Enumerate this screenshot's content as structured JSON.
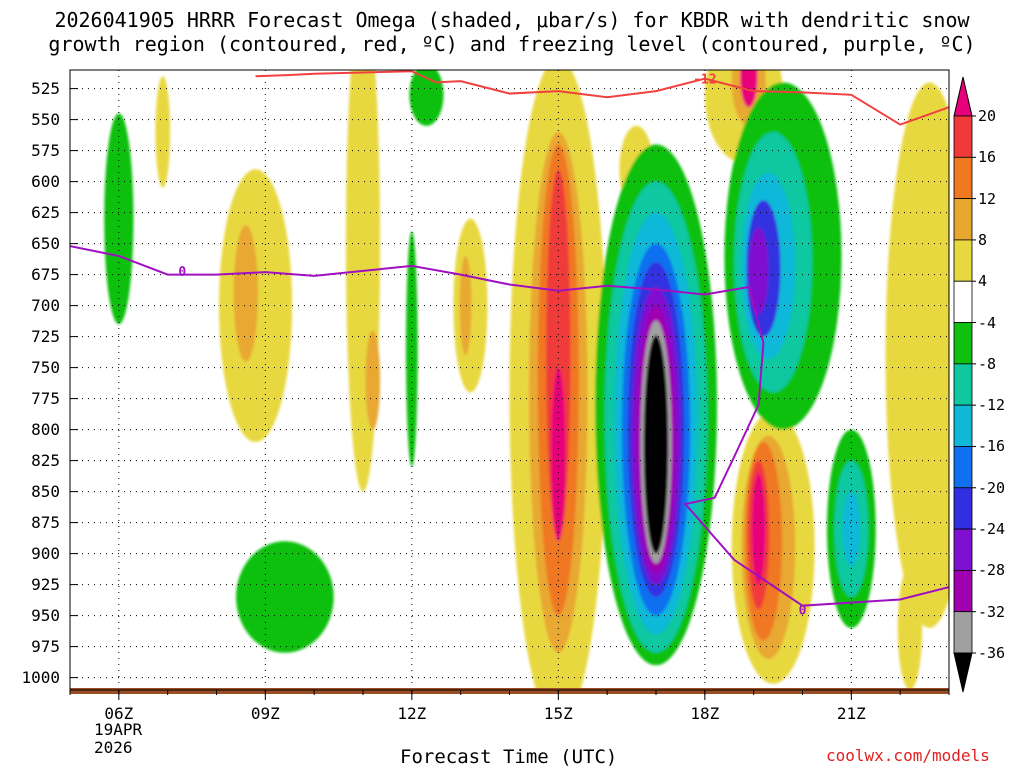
{
  "chart_data": {
    "type": "heatmap",
    "title_line1": "2026041905 HRRR Forecast Omega (shaded, μbar/s) for KBDR with dendritic snow",
    "title_line2": "growth region (contoured, red, ºC) and freezing level (contoured, purple, ºC)",
    "xlabel": "Forecast Time (UTC)",
    "x_ticks": [
      "06Z",
      "09Z",
      "12Z",
      "15Z",
      "18Z",
      "21Z"
    ],
    "x_tick_hours": [
      6,
      9,
      12,
      15,
      18,
      21
    ],
    "date_label": [
      "19APR",
      "2026"
    ],
    "xlim_hours": [
      5,
      23
    ],
    "y_ticks": [
      525,
      550,
      575,
      600,
      625,
      650,
      675,
      700,
      725,
      750,
      775,
      800,
      825,
      850,
      875,
      900,
      925,
      950,
      975,
      1000
    ],
    "ylim_hpa": [
      510,
      1010
    ],
    "colorbar_levels": [
      20,
      16,
      12,
      8,
      4,
      -4,
      -8,
      -12,
      -16,
      -20,
      -24,
      -28,
      -32,
      -36
    ],
    "colorbar_colors": [
      "#e8007a",
      "#f03a3a",
      "#f07820",
      "#e8a830",
      "#e8d840",
      "#ffffff",
      "#10c010",
      "#10c8a0",
      "#10b8d8",
      "#1070f0",
      "#3030e0",
      "#8010d0",
      "#a000b0",
      "#a0a0a0",
      "#000000"
    ],
    "freezing_level_label": "0",
    "dgz_label": "-12",
    "freezing_level": {
      "hours": [
        5,
        6,
        7,
        8,
        9,
        10,
        11,
        12,
        13,
        14,
        15,
        16,
        17,
        18,
        18.9,
        19.2,
        19.1,
        18.6,
        18.2,
        17.6,
        18.6,
        20,
        22,
        23
      ],
      "hpa": [
        652,
        660,
        675,
        675,
        673,
        676,
        672,
        668,
        675,
        683,
        688,
        684,
        687,
        691,
        685,
        730,
        780,
        822,
        855,
        860,
        905,
        942,
        937,
        927
      ]
    },
    "dgz_contour": {
      "hours": [
        8.8,
        9.5,
        10,
        11,
        12,
        12.5,
        13,
        14,
        15,
        16,
        17,
        18,
        19,
        20,
        21,
        22,
        22.5,
        23
      ],
      "hpa": [
        515,
        514,
        513,
        512,
        511,
        520,
        519,
        529,
        527,
        532,
        527,
        517,
        527,
        528,
        530,
        554,
        547,
        540
      ]
    },
    "credit": "coolwx.com/models"
  }
}
